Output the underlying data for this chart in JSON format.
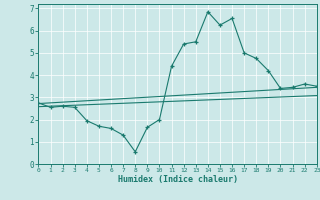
{
  "title": "",
  "xlabel": "Humidex (Indice chaleur)",
  "ylabel": "",
  "background_color": "#cce8e8",
  "line_color": "#1a7a6e",
  "xlim": [
    0,
    23
  ],
  "ylim": [
    0,
    7.2
  ],
  "xticks": [
    0,
    1,
    2,
    3,
    4,
    5,
    6,
    7,
    8,
    9,
    10,
    11,
    12,
    13,
    14,
    15,
    16,
    17,
    18,
    19,
    20,
    21,
    22,
    23
  ],
  "yticks": [
    0,
    1,
    2,
    3,
    4,
    5,
    6,
    7
  ],
  "curve1_x": [
    0,
    1,
    2,
    3,
    4,
    5,
    6,
    7,
    8,
    9,
    10,
    11,
    12,
    13,
    14,
    15,
    16,
    17,
    18,
    19,
    20,
    21,
    22,
    23
  ],
  "curve1_y": [
    2.75,
    2.55,
    2.6,
    2.55,
    1.95,
    1.7,
    1.6,
    1.3,
    0.55,
    1.65,
    2.0,
    4.4,
    5.4,
    5.5,
    6.85,
    6.25,
    6.55,
    5.0,
    4.75,
    4.2,
    3.4,
    3.45,
    3.6,
    3.5
  ],
  "curve2_x": [
    0,
    23
  ],
  "curve2_y": [
    2.72,
    3.45
  ],
  "curve3_x": [
    0,
    23
  ],
  "curve3_y": [
    2.58,
    3.08
  ]
}
